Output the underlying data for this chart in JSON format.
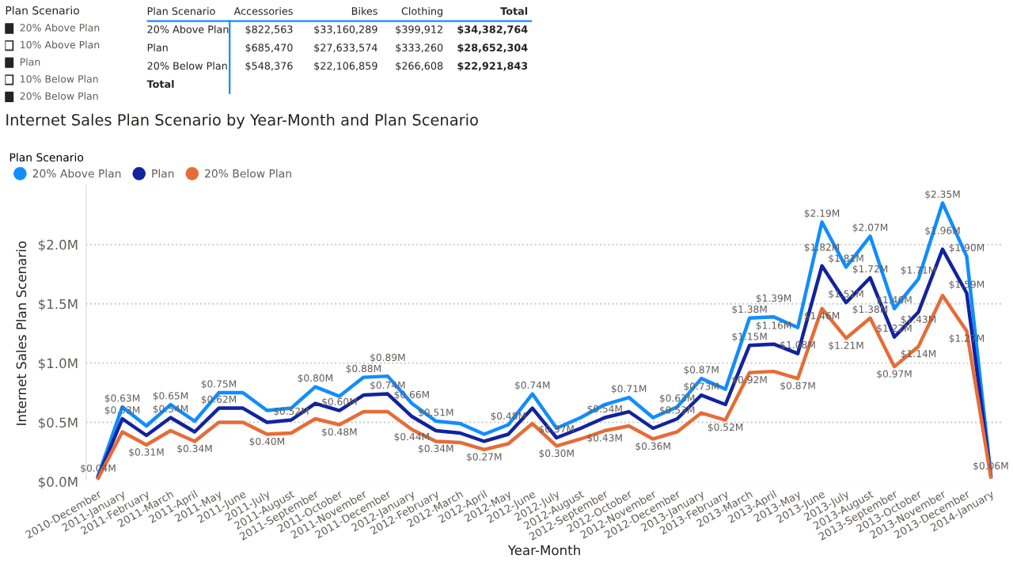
{
  "chart_data": [
    {
      "type": "other",
      "title": "Plan Scenario",
      "categories": [
        "20% Above Plan",
        "10% Above Plan",
        "Plan",
        "10% Below Plan",
        "20% Below Plan"
      ],
      "colors": [
        "#252423",
        "#ffffff",
        "#252423",
        "#ffffff",
        "#252423"
      ]
    },
    {
      "type": "other",
      "categories": [
        "Plan Scenario",
        "Accessories",
        "Bikes",
        "Clothing",
        "Total"
      ],
      "y_categories": [
        "20% Above Plan",
        "Plan",
        "20% Below Plan",
        "Total"
      ],
      "cell_labels": [
        [
          "$822,563",
          "$33,160,289",
          "$399,912",
          "$34,382,764"
        ],
        [
          "$685,470",
          "$27,633,574",
          "$333,260",
          "$28,652,304"
        ],
        [
          "$548,376",
          "$22,106,859",
          "$266,608",
          "$22,921,843"
        ],
        [
          null,
          null,
          null,
          null
        ]
      ]
    },
    {
      "type": "line",
      "title": "Internet Sales Plan Scenario by Year-Month and Plan Scenario",
      "xlabel": "Year-Month",
      "ylabel": "Internet Sales Plan Scenario",
      "legend_title": "Plan Scenario",
      "legend": "top left",
      "grid": "y",
      "marker": "none",
      "line_style": "solid",
      "categories": [
        "2010-December",
        "2011-January",
        "2011-February",
        "2011-March",
        "2011-April",
        "2011-May",
        "2011-June",
        "2011-July",
        "2011-August",
        "2011-September",
        "2011-October",
        "2011-November",
        "2011-December",
        "2012-January",
        "2012-February",
        "2012-March",
        "2012-April",
        "2012-May",
        "2012-June",
        "2012-July",
        "2012-August",
        "2012-September",
        "2012-October",
        "2012-November",
        "2012-December",
        "2013-January",
        "2013-February",
        "2013-March",
        "2013-April",
        "2013-May",
        "2013-June",
        "2013-July",
        "2013-August",
        "2013-September",
        "2013-October",
        "2013-November",
        "2013-December",
        "2014-January"
      ],
      "ylim": [
        0,
        2.5
      ],
      "yticks": [
        {
          "value": 0,
          "label": "$0.0M"
        },
        {
          "value": 0.5,
          "label": "$0.5M"
        },
        {
          "value": 1.0,
          "label": "$1.0M"
        },
        {
          "value": 1.5,
          "label": "$1.5M"
        },
        {
          "value": 2.0,
          "label": "$2.0M"
        }
      ],
      "series": [
        {
          "name": "20% Above Plan",
          "color": "#118dff",
          "values": [
            0.05,
            0.63,
            0.47,
            0.65,
            0.51,
            0.75,
            0.75,
            0.6,
            0.62,
            0.8,
            0.72,
            0.88,
            0.89,
            0.66,
            0.51,
            0.49,
            0.4,
            0.48,
            0.74,
            0.45,
            0.54,
            0.65,
            0.71,
            0.54,
            0.63,
            0.87,
            0.78,
            1.38,
            1.39,
            1.3,
            2.19,
            1.81,
            2.07,
            1.46,
            1.71,
            2.35,
            1.9,
            0.06
          ],
          "value_labels": [
            null,
            "$0.63M",
            null,
            "$0.65M",
            null,
            "$0.75M",
            null,
            null,
            null,
            "$0.80M",
            null,
            "$0.88M",
            "$0.89M",
            "$0.66M",
            "$0.51M",
            null,
            null,
            "$0.48M",
            "$0.74M",
            null,
            null,
            null,
            "$0.71M",
            null,
            "$0.63M",
            "$0.87M",
            null,
            "$1.38M",
            "$1.39M",
            null,
            "$2.19M",
            "$1.81M",
            "$2.07M",
            "$1.46M",
            "$1.71M",
            "$2.35M",
            "$1.90M",
            "$0.06M"
          ]
        },
        {
          "name": "Plan",
          "color": "#12239e",
          "values": [
            0.04,
            0.53,
            0.39,
            0.54,
            0.42,
            0.62,
            0.62,
            0.5,
            0.52,
            0.66,
            0.6,
            0.73,
            0.74,
            0.55,
            0.43,
            0.41,
            0.34,
            0.4,
            0.62,
            0.37,
            0.45,
            0.54,
            0.59,
            0.45,
            0.53,
            0.73,
            0.65,
            1.15,
            1.16,
            1.08,
            1.82,
            1.51,
            1.72,
            1.22,
            1.43,
            1.96,
            1.59,
            0.05
          ],
          "value_labels": [
            "$0.04M",
            "$0.53M",
            null,
            "$0.54M",
            null,
            "$0.62M",
            null,
            null,
            "$0.52M",
            null,
            "$0.60M",
            null,
            "$0.74M",
            null,
            null,
            null,
            null,
            null,
            null,
            "$0.37M",
            null,
            "$0.54M",
            null,
            null,
            "$0.53M",
            "$0.73M",
            null,
            "$1.15M",
            "$1.16M",
            "$1.08M",
            "$1.82M",
            "$1.51M",
            "$1.72M",
            "$1.22M",
            "$1.43M",
            "$1.96M",
            "$1.59M",
            null
          ]
        },
        {
          "name": "20% Below Plan",
          "color": "#e66c37",
          "values": [
            0.03,
            0.42,
            0.31,
            0.43,
            0.34,
            0.5,
            0.5,
            0.4,
            0.41,
            0.53,
            0.48,
            0.59,
            0.59,
            0.44,
            0.34,
            0.33,
            0.27,
            0.32,
            0.49,
            0.3,
            0.36,
            0.43,
            0.47,
            0.36,
            0.42,
            0.58,
            0.52,
            0.92,
            0.93,
            0.87,
            1.46,
            1.21,
            1.38,
            0.97,
            1.14,
            1.57,
            1.27,
            0.04
          ],
          "value_labels": [
            null,
            null,
            "$0.31M",
            null,
            "$0.34M",
            null,
            null,
            "$0.40M",
            null,
            null,
            "$0.48M",
            null,
            null,
            "$0.44M",
            "$0.34M",
            null,
            "$0.27M",
            null,
            null,
            "$0.30M",
            null,
            "$0.43M",
            null,
            "$0.36M",
            null,
            null,
            "$0.52M",
            "$0.92M",
            null,
            "$0.87M",
            "$1.46M",
            "$1.21M",
            "$1.38M",
            "$0.97M",
            "$1.14M",
            null,
            "$1.27M",
            null
          ]
        }
      ]
    }
  ]
}
